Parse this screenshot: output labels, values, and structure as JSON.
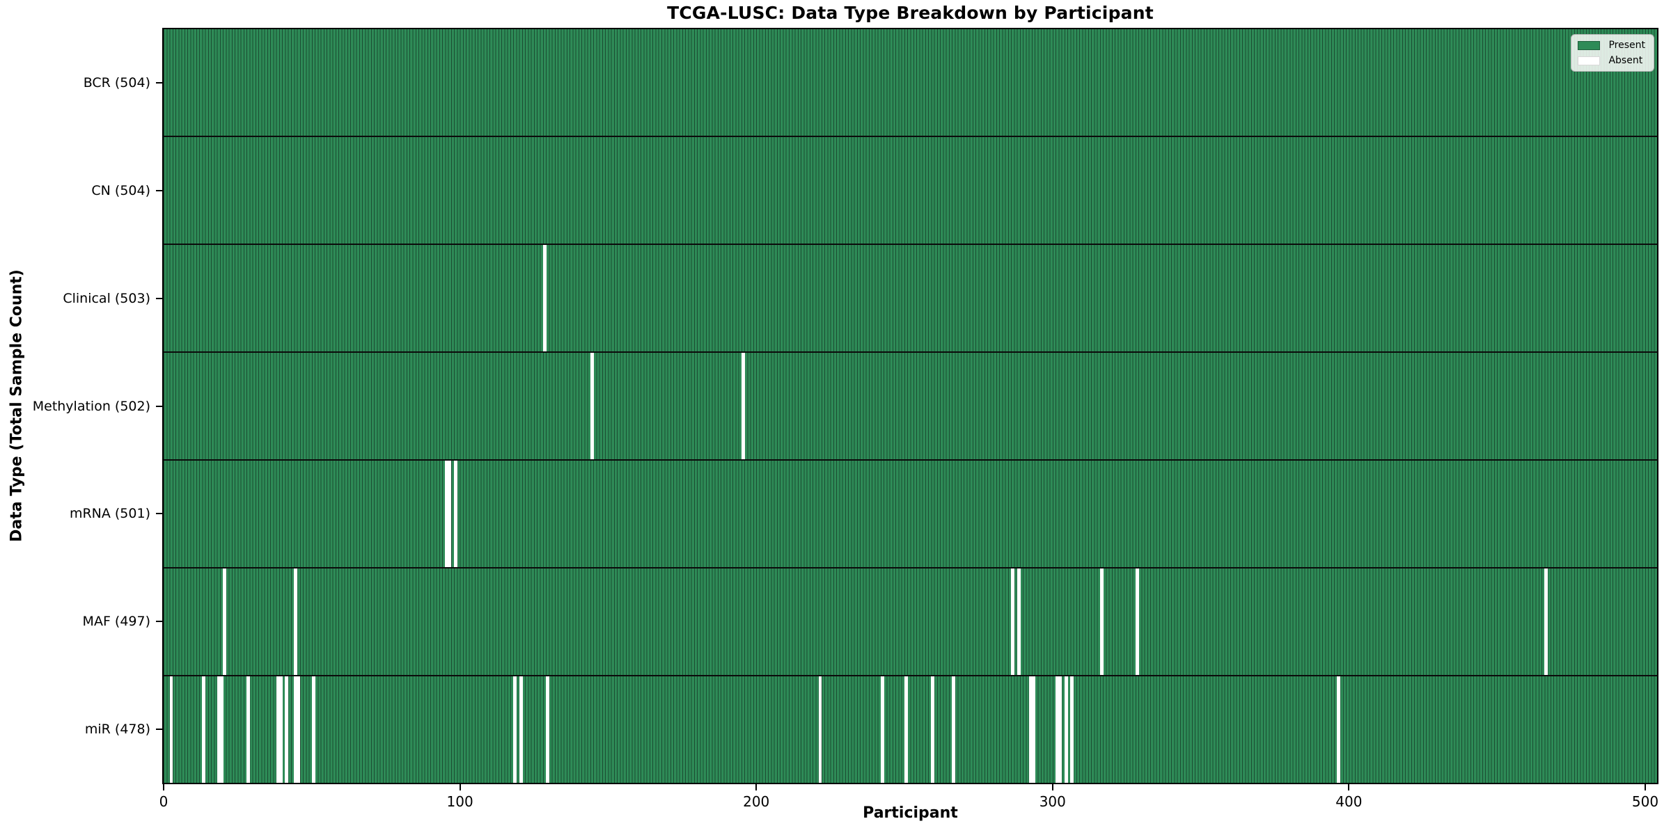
{
  "chart_data": {
    "type": "heatmap",
    "title": "TCGA-LUSC: Data Type Breakdown by Participant",
    "xlabel": "Participant",
    "ylabel": "Data Type (Total Sample Count)",
    "n_participants": 504,
    "x_ticks": [
      0,
      100,
      200,
      300,
      400,
      500
    ],
    "xlim": [
      0,
      504
    ],
    "grid": false,
    "legend_position": "upper right",
    "colors": {
      "present": "#2e8b57",
      "bar_edge": "#1b4c32",
      "absent": "#ffffff"
    },
    "legend": [
      {
        "label": "Present",
        "color": "#2e8b57"
      },
      {
        "label": "Absent",
        "color": "#ffffff"
      }
    ],
    "rows": [
      {
        "label": "BCR (504)",
        "data_type": "BCR",
        "present_count": 504,
        "absent_participants": []
      },
      {
        "label": "CN (504)",
        "data_type": "CN",
        "present_count": 504,
        "absent_participants": []
      },
      {
        "label": "Clinical (503)",
        "data_type": "Clinical",
        "present_count": 503,
        "absent_participants": [
          128
        ]
      },
      {
        "label": "Methylation (502)",
        "data_type": "Methylation",
        "present_count": 502,
        "absent_participants": [
          144,
          195
        ]
      },
      {
        "label": "mRNA (501)",
        "data_type": "mRNA",
        "present_count": 501,
        "absent_participants": [
          95,
          96,
          98
        ]
      },
      {
        "label": "MAF (497)",
        "data_type": "MAF",
        "present_count": 497,
        "absent_participants": [
          20,
          44,
          286,
          288,
          316,
          328,
          466
        ]
      },
      {
        "label": "miR (478)",
        "data_type": "miR",
        "present_count": 478,
        "absent_participants": [
          2,
          13,
          18,
          19,
          28,
          38,
          39,
          41,
          44,
          45,
          50,
          118,
          120,
          129,
          221,
          242,
          250,
          259,
          266,
          292,
          293,
          301,
          302,
          304,
          306,
          396
        ]
      }
    ]
  }
}
